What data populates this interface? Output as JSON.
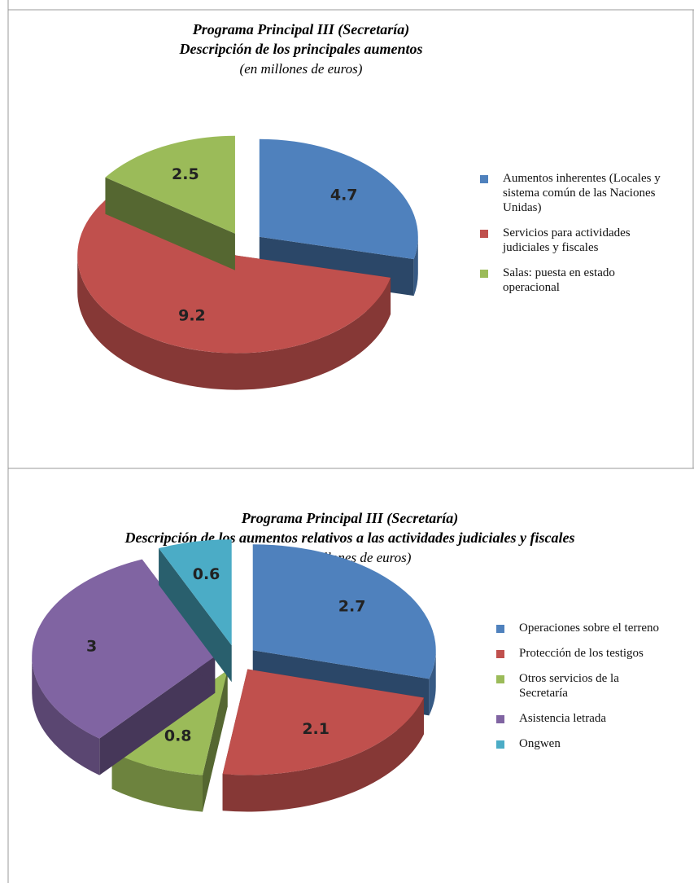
{
  "chart_data": [
    {
      "type": "pie",
      "title": "Programa Principal III (Secretaría)",
      "subtitle": "Descripción de los principales aumentos",
      "units": "(en millones de euros)",
      "categories": [
        "Aumentos inherentes (Locales y sistema común de las Naciones Unidas)",
        "Servicios para actividades judiciales y fiscales",
        "Salas: puesta en estado operacional"
      ],
      "values": [
        4.7,
        9.2,
        2.5
      ],
      "colors": [
        "#4f81bd",
        "#c0504d",
        "#9bbb59"
      ],
      "legend": "right"
    },
    {
      "type": "pie",
      "title": "Programa Principal III (Secretaría)",
      "subtitle": "Descripción de los aumentos relativos a las actividades judiciales y fiscales",
      "units": "(en millones de euros)",
      "categories": [
        "Operaciones sobre el terreno",
        "Protección de los testigos",
        "Otros servicios de la Secretaría",
        "Asistencia letrada",
        "Ongwen"
      ],
      "values": [
        2.7,
        2.1,
        0.8,
        3,
        0.6
      ],
      "colors": [
        "#4f81bd",
        "#c0504d",
        "#9bbb59",
        "#8064a2",
        "#4bacc6"
      ],
      "legend": "right"
    }
  ]
}
